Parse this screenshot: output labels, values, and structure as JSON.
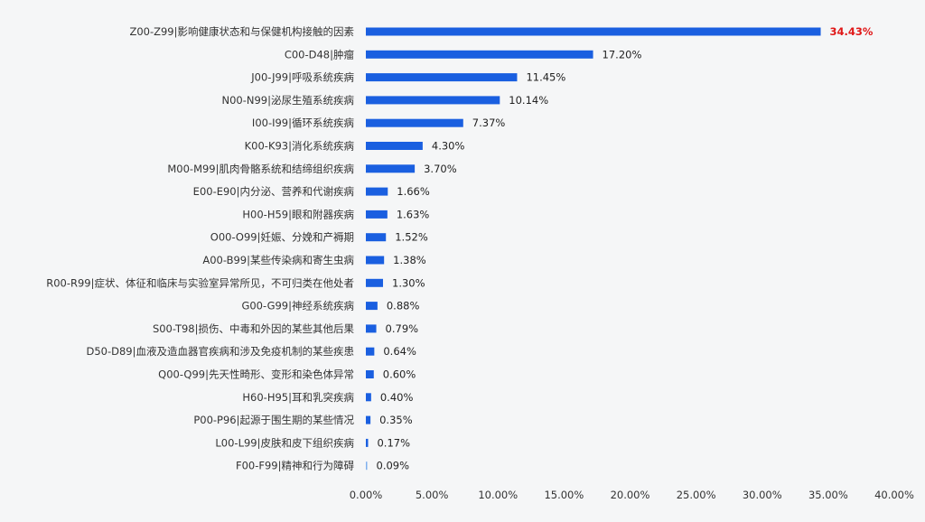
{
  "chart_data": {
    "type": "bar",
    "orientation": "horizontal",
    "categories": [
      "Z00-Z99|影响健康状态和与保健机构接触的因素",
      "C00-D48|肿瘤",
      "J00-J99|呼吸系统疾病",
      "N00-N99|泌尿生殖系统疾病",
      "I00-I99|循环系统疾病",
      "K00-K93|消化系统疾病",
      "M00-M99|肌肉骨骼系统和结缔组织疾病",
      "E00-E90|内分泌、营养和代谢疾病",
      "H00-H59|眼和附器疾病",
      "O00-O99|妊娠、分娩和产褥期",
      "A00-B99|某些传染病和寄生虫病",
      "R00-R99|症状、体征和临床与实验室异常所见，不可归类在他处者",
      "G00-G99|神经系统疾病",
      "S00-T98|损伤、中毒和外因的某些其他后果",
      "D50-D89|血液及造血器官疾病和涉及免疫机制的某些疾患",
      "Q00-Q99|先天性畸形、变形和染色体异常",
      "H60-H95|耳和乳突疾病",
      "P00-P96|起源于围生期的某些情况",
      "L00-L99|皮肤和皮下组织疾病",
      "F00-F99|精神和行为障碍"
    ],
    "values": [
      34.43,
      17.2,
      11.45,
      10.14,
      7.37,
      4.3,
      3.7,
      1.66,
      1.63,
      1.52,
      1.38,
      1.3,
      0.88,
      0.79,
      0.64,
      0.6,
      0.4,
      0.35,
      0.17,
      0.09
    ],
    "value_labels": [
      "34.43%",
      "17.20%",
      "11.45%",
      "10.14%",
      "7.37%",
      "4.30%",
      "3.70%",
      "1.66%",
      "1.63%",
      "1.52%",
      "1.38%",
      "1.30%",
      "0.88%",
      "0.79%",
      "0.64%",
      "0.60%",
      "0.40%",
      "0.35%",
      "0.17%",
      "0.09%"
    ],
    "x_ticks": [
      "0.00%",
      "5.00%",
      "10.00%",
      "15.00%",
      "20.00%",
      "25.00%",
      "30.00%",
      "35.00%",
      "40.00%"
    ],
    "xlim": [
      0,
      40
    ],
    "title": "",
    "xlabel": "",
    "ylabel": "",
    "grid": false,
    "legend": "none",
    "colors": {
      "bar": "#1a5fe0",
      "bar_light": "#7fb0ee",
      "highlight_label": "#e01818",
      "text": "#333333",
      "background": "#f5f6f7"
    }
  }
}
